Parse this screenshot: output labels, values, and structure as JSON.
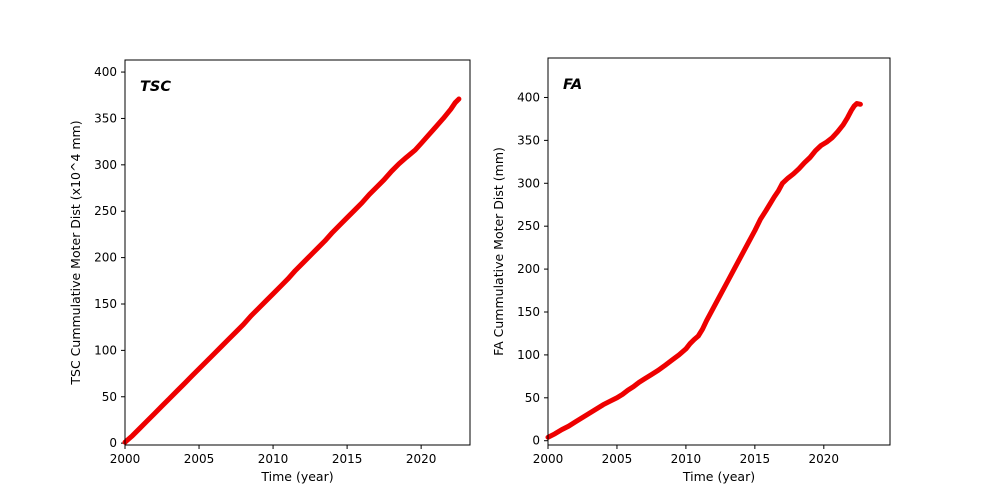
{
  "figure": {
    "background": "#ffffff"
  },
  "chart_data": [
    {
      "type": "line",
      "annotation": "TSC",
      "xlabel": "Time (year)",
      "ylabel": "TSC Cummulative Moter Dist (x10^4 mm)",
      "xlim": [
        2000,
        2023.3
      ],
      "ylim": [
        -2,
        413
      ],
      "xticks": [
        2000,
        2005,
        2010,
        2015,
        2020
      ],
      "yticks": [
        0,
        50,
        100,
        150,
        200,
        250,
        300,
        350,
        400
      ],
      "grid": false,
      "legend": "none",
      "line_color": "#ee0000",
      "line_width": 5,
      "x": [
        2000,
        2000.5,
        2001,
        2001.5,
        2002,
        2002.5,
        2003,
        2003.5,
        2004,
        2004.5,
        2005,
        2005.5,
        2006,
        2006.5,
        2007,
        2007.5,
        2008,
        2008.5,
        2009,
        2009.5,
        2010,
        2010.5,
        2011,
        2011.5,
        2012,
        2012.5,
        2013,
        2013.5,
        2014,
        2014.5,
        2015,
        2015.5,
        2016,
        2016.5,
        2017,
        2017.5,
        2018,
        2018.5,
        2019,
        2019.3,
        2019.6,
        2020,
        2020.5,
        2021,
        2021.5,
        2022,
        2022.3,
        2022.55
      ],
      "y": [
        1,
        8,
        16,
        24,
        32,
        40,
        48,
        56,
        64,
        72,
        80,
        88,
        96,
        104,
        112,
        120,
        128,
        137,
        145,
        153,
        161,
        169,
        177,
        186,
        194,
        202,
        210,
        218,
        227,
        235,
        243,
        251,
        259,
        268,
        276,
        284,
        293,
        301,
        308,
        312,
        316,
        323,
        332,
        341,
        350,
        360,
        367,
        371
      ]
    },
    {
      "type": "line",
      "annotation": "FA",
      "xlabel": "Time (year)",
      "ylabel": "FA Cummulative Moter Dist (mm)",
      "xlim": [
        2000,
        2024.8
      ],
      "ylim": [
        -5,
        446
      ],
      "xticks": [
        2000,
        2005,
        2010,
        2015,
        2020
      ],
      "yticks": [
        0,
        50,
        100,
        150,
        200,
        250,
        300,
        350,
        400
      ],
      "grid": false,
      "legend": "none",
      "line_color": "#ee0000",
      "line_width": 5,
      "x": [
        2000,
        2000.5,
        2001,
        2001.5,
        2002,
        2002.5,
        2003,
        2003.5,
        2004,
        2004.5,
        2005,
        2005.4,
        2005.8,
        2006.2,
        2006.6,
        2007,
        2007.5,
        2008,
        2008.5,
        2009,
        2009.5,
        2010,
        2010.3,
        2010.6,
        2010.9,
        2011.2,
        2011.5,
        2012,
        2012.5,
        2013,
        2013.5,
        2014,
        2014.5,
        2015,
        2015.4,
        2015.8,
        2016.1,
        2016.4,
        2016.7,
        2017,
        2017.4,
        2017.8,
        2018.2,
        2018.6,
        2019,
        2019.4,
        2019.8,
        2020.2,
        2020.6,
        2021,
        2021.4,
        2021.7,
        2022,
        2022.2,
        2022.4,
        2022.65
      ],
      "y": [
        4,
        8,
        13,
        17,
        22,
        27,
        32,
        37,
        42,
        46,
        50,
        54,
        59,
        63,
        68,
        72,
        77,
        82,
        88,
        94,
        100,
        107,
        113,
        118,
        122,
        130,
        140,
        155,
        170,
        185,
        200,
        215,
        230,
        245,
        258,
        268,
        276,
        284,
        291,
        300,
        306,
        311,
        317,
        324,
        330,
        338,
        344,
        348,
        353,
        360,
        368,
        376,
        385,
        390,
        393,
        392
      ]
    }
  ]
}
